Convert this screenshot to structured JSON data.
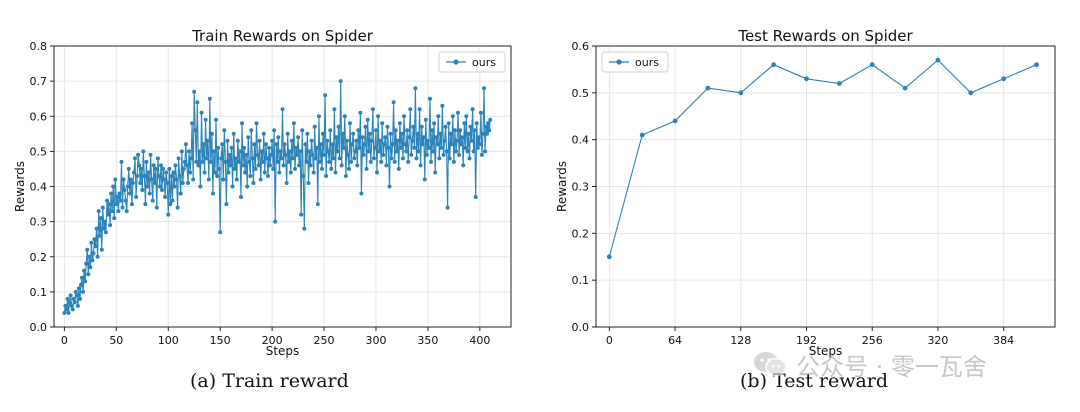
{
  "colors": {
    "series": "#2b83b8",
    "grid": "#e6e6e6",
    "axis": "#222222"
  },
  "captions": {
    "a": "(a) Train reward",
    "b": "(b) Test reward"
  },
  "watermark": {
    "text": "公众号 · 零一瓦舍",
    "icon": "wechat-logo-icon"
  },
  "chart_data": [
    {
      "type": "line",
      "title": "Train Rewards on Spider",
      "xlabel": "Steps",
      "ylabel": "Rewards",
      "xlim": [
        -10,
        430
      ],
      "ylim": [
        0.0,
        0.8
      ],
      "xticks": [
        0,
        50,
        100,
        150,
        200,
        250,
        300,
        350,
        400
      ],
      "yticks": [
        0.0,
        0.1,
        0.2,
        0.3,
        0.4,
        0.5,
        0.6,
        0.7,
        0.8
      ],
      "ytick_labels": [
        "0.0",
        "0.1",
        "0.2",
        "0.3",
        "0.4",
        "0.5",
        "0.6",
        "0.7",
        "0.8"
      ],
      "grid": true,
      "legend_position": "upper right",
      "series": [
        {
          "name": "ours",
          "x_start": 0,
          "x_step": 1,
          "values": [
            0.04,
            0.06,
            0.05,
            0.08,
            0.04,
            0.07,
            0.09,
            0.06,
            0.05,
            0.08,
            0.07,
            0.1,
            0.09,
            0.06,
            0.11,
            0.08,
            0.12,
            0.14,
            0.1,
            0.16,
            0.13,
            0.18,
            0.22,
            0.15,
            0.2,
            0.17,
            0.24,
            0.19,
            0.21,
            0.25,
            0.23,
            0.28,
            0.2,
            0.33,
            0.26,
            0.31,
            0.22,
            0.34,
            0.28,
            0.3,
            0.27,
            0.36,
            0.32,
            0.35,
            0.29,
            0.38,
            0.33,
            0.4,
            0.31,
            0.42,
            0.35,
            0.37,
            0.33,
            0.38,
            0.36,
            0.47,
            0.34,
            0.42,
            0.39,
            0.36,
            0.33,
            0.4,
            0.45,
            0.38,
            0.42,
            0.35,
            0.41,
            0.44,
            0.48,
            0.37,
            0.43,
            0.49,
            0.46,
            0.41,
            0.45,
            0.39,
            0.5,
            0.43,
            0.35,
            0.47,
            0.4,
            0.44,
            0.38,
            0.49,
            0.42,
            0.36,
            0.46,
            0.41,
            0.45,
            0.34,
            0.48,
            0.43,
            0.4,
            0.46,
            0.39,
            0.45,
            0.42,
            0.37,
            0.44,
            0.41,
            0.32,
            0.45,
            0.35,
            0.43,
            0.36,
            0.44,
            0.4,
            0.46,
            0.42,
            0.34,
            0.48,
            0.43,
            0.38,
            0.5,
            0.41,
            0.45,
            0.47,
            0.52,
            0.46,
            0.41,
            0.5,
            0.44,
            0.48,
            0.58,
            0.42,
            0.67,
            0.56,
            0.47,
            0.64,
            0.46,
            0.5,
            0.4,
            0.61,
            0.47,
            0.52,
            0.44,
            0.59,
            0.48,
            0.53,
            0.42,
            0.65,
            0.47,
            0.55,
            0.38,
            0.5,
            0.44,
            0.59,
            0.43,
            0.51,
            0.45,
            0.27,
            0.48,
            0.52,
            0.42,
            0.56,
            0.47,
            0.35,
            0.53,
            0.44,
            0.49,
            0.46,
            0.51,
            0.4,
            0.55,
            0.45,
            0.48,
            0.42,
            0.53,
            0.47,
            0.5,
            0.37,
            0.58,
            0.46,
            0.51,
            0.44,
            0.49,
            0.4,
            0.54,
            0.47,
            0.43,
            0.56,
            0.48,
            0.41,
            0.52,
            0.45,
            0.58,
            0.49,
            0.46,
            0.53,
            0.42,
            0.5,
            0.47,
            0.55,
            0.44,
            0.52,
            0.48,
            0.43,
            0.51,
            0.46,
            0.49,
            0.53,
            0.45,
            0.56,
            0.3,
            0.52,
            0.47,
            0.54,
            0.44,
            0.5,
            0.48,
            0.62,
            0.46,
            0.52,
            0.49,
            0.41,
            0.55,
            0.47,
            0.5,
            0.44,
            0.53,
            0.48,
            0.58,
            0.45,
            0.51,
            0.49,
            0.54,
            0.46,
            0.5,
            0.32,
            0.56,
            0.43,
            0.28,
            0.52,
            0.47,
            0.55,
            0.41,
            0.5,
            0.46,
            0.53,
            0.49,
            0.44,
            0.57,
            0.48,
            0.51,
            0.35,
            0.6,
            0.47,
            0.52,
            0.45,
            0.55,
            0.49,
            0.66,
            0.43,
            0.53,
            0.5,
            0.47,
            0.56,
            0.45,
            0.52,
            0.48,
            0.62,
            0.44,
            0.54,
            0.5,
            0.57,
            0.48,
            0.7,
            0.46,
            0.55,
            0.51,
            0.6,
            0.43,
            0.53,
            0.49,
            0.45,
            0.58,
            0.47,
            0.52,
            0.55,
            0.48,
            0.5,
            0.53,
            0.46,
            0.56,
            0.51,
            0.61,
            0.38,
            0.54,
            0.49,
            0.52,
            0.57,
            0.45,
            0.59,
            0.5,
            0.55,
            0.47,
            0.53,
            0.62,
            0.48,
            0.51,
            0.56,
            0.44,
            0.6,
            0.5,
            0.53,
            0.47,
            0.58,
            0.49,
            0.52,
            0.54,
            0.46,
            0.57,
            0.51,
            0.4,
            0.55,
            0.48,
            0.52,
            0.64,
            0.47,
            0.56,
            0.5,
            0.53,
            0.45,
            0.58,
            0.51,
            0.55,
            0.48,
            0.6,
            0.52,
            0.5,
            0.56,
            0.47,
            0.54,
            0.62,
            0.49,
            0.53,
            0.57,
            0.51,
            0.68,
            0.48,
            0.55,
            0.5,
            0.62,
            0.46,
            0.57,
            0.52,
            0.54,
            0.42,
            0.59,
            0.49,
            0.53,
            0.51,
            0.65,
            0.47,
            0.56,
            0.5,
            0.58,
            0.44,
            0.54,
            0.52,
            0.6,
            0.48,
            0.55,
            0.51,
            0.63,
            0.49,
            0.53,
            0.57,
            0.5,
            0.34,
            0.58,
            0.48,
            0.55,
            0.52,
            0.6,
            0.47,
            0.56,
            0.5,
            0.53,
            0.61,
            0.49,
            0.56,
            0.52,
            0.54,
            0.46,
            0.58,
            0.51,
            0.6,
            0.5,
            0.55,
            0.48,
            0.57,
            0.53,
            0.62,
            0.5,
            0.56,
            0.37,
            0.58,
            0.51,
            0.54,
            0.52,
            0.61,
            0.49,
            0.55,
            0.68,
            0.5,
            0.57,
            0.55,
            0.58,
            0.56,
            0.59
          ]
        }
      ]
    },
    {
      "type": "line",
      "title": "Test Rewards on Spider",
      "xlabel": "Steps",
      "ylabel": "Rewards",
      "xlim": [
        -13,
        434
      ],
      "ylim": [
        0.0,
        0.6
      ],
      "xticks": [
        0,
        64,
        128,
        192,
        256,
        320,
        384
      ],
      "yticks": [
        0.0,
        0.1,
        0.2,
        0.3,
        0.4,
        0.5,
        0.6
      ],
      "ytick_labels": [
        "0.0",
        "0.1",
        "0.2",
        "0.3",
        "0.4",
        "0.5",
        "0.6"
      ],
      "grid": true,
      "legend_position": "upper left",
      "series": [
        {
          "name": "ours",
          "x": [
            0,
            32,
            64,
            96,
            128,
            160,
            192,
            224,
            256,
            288,
            320,
            352,
            384,
            416
          ],
          "values": [
            0.15,
            0.41,
            0.44,
            0.51,
            0.5,
            0.56,
            0.53,
            0.52,
            0.56,
            0.51,
            0.57,
            0.5,
            0.53,
            0.56
          ]
        }
      ]
    }
  ]
}
